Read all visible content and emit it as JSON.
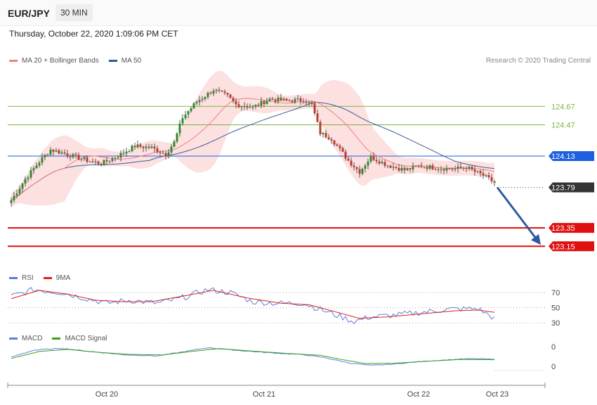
{
  "header": {
    "pair": "EUR/JPY",
    "timeframe": "30 MIN"
  },
  "datetime": "Thursday, October 22, 2020 1:09:06 PM CET",
  "credit": "Research © 2020 Trading Central",
  "legends": {
    "main": [
      {
        "label": "MA 20 + Bollinger Bands",
        "color": "#f08080"
      },
      {
        "label": "MA 50",
        "color": "#2d5a9a"
      }
    ],
    "rsi": [
      {
        "label": "RSI",
        "color": "#5b7fd6"
      },
      {
        "label": "9MA",
        "color": "#e02020"
      }
    ],
    "macd": [
      {
        "label": "MACD",
        "color": "#5b7fd6"
      },
      {
        "label": "MACD Signal",
        "color": "#3aa01d"
      }
    ]
  },
  "colors": {
    "bull": "#2e8b2e",
    "bear": "#c0392b",
    "res": "#7cb342",
    "blue": "#1e5fe0",
    "sup": "#e01010",
    "band": "#fde0e0",
    "ma20": "#f08080",
    "ma50": "#3a5d9a"
  },
  "chart_data": [
    {
      "type": "candlestick",
      "title": "EUR/JPY 30 MIN",
      "x_tick_labels": [
        "Oct 20",
        "Oct 21",
        "Oct 22",
        "Oct 23"
      ],
      "ylim": [
        122.9,
        125.1
      ],
      "levels": [
        {
          "value": 124.67,
          "label": "124.67",
          "kind": "resistance"
        },
        {
          "value": 124.47,
          "label": "124.47",
          "kind": "resistance"
        },
        {
          "value": 124.13,
          "label": "124.13",
          "kind": "pivot"
        },
        {
          "value": 123.79,
          "label": "123.79",
          "kind": "last"
        },
        {
          "value": 123.35,
          "label": "123.35",
          "kind": "support"
        },
        {
          "value": 123.15,
          "label": "123.15",
          "kind": "support"
        }
      ],
      "arrow": {
        "from": 123.79,
        "to": 123.15,
        "direction": "down"
      },
      "path_anchors": [
        [
          0,
          123.65
        ],
        [
          5,
          123.88
        ],
        [
          10,
          124.07
        ],
        [
          14,
          124.2
        ],
        [
          20,
          124.15
        ],
        [
          26,
          124.09
        ],
        [
          32,
          124.05
        ],
        [
          38,
          124.13
        ],
        [
          44,
          124.24
        ],
        [
          50,
          124.22
        ],
        [
          55,
          124.15
        ],
        [
          58,
          124.28
        ],
        [
          61,
          124.55
        ],
        [
          66,
          124.72
        ],
        [
          72,
          124.85
        ],
        [
          77,
          124.78
        ],
        [
          80,
          124.69
        ],
        [
          86,
          124.66
        ],
        [
          92,
          124.75
        ],
        [
          98,
          124.73
        ],
        [
          104,
          124.74
        ],
        [
          107,
          124.69
        ],
        [
          110,
          124.38
        ],
        [
          114,
          124.32
        ],
        [
          120,
          124.08
        ],
        [
          124,
          123.96
        ],
        [
          128,
          124.12
        ],
        [
          134,
          124.03
        ],
        [
          140,
          123.98
        ],
        [
          146,
          124.02
        ],
        [
          152,
          124.0
        ],
        [
          158,
          123.99
        ],
        [
          162,
          124.01
        ],
        [
          165,
          123.96
        ],
        [
          168,
          123.92
        ],
        [
          172,
          123.84
        ]
      ]
    },
    {
      "type": "line",
      "title": "RSI",
      "y_ticks": [
        70,
        50,
        30
      ],
      "series": [
        {
          "name": "RSI"
        },
        {
          "name": "9MA"
        }
      ],
      "rsi_anchors": [
        [
          0,
          65
        ],
        [
          8,
          74
        ],
        [
          18,
          70
        ],
        [
          26,
          63
        ],
        [
          34,
          56
        ],
        [
          42,
          60
        ],
        [
          52,
          56
        ],
        [
          60,
          62
        ],
        [
          70,
          74
        ],
        [
          78,
          70
        ],
        [
          86,
          58
        ],
        [
          94,
          56
        ],
        [
          104,
          56
        ],
        [
          112,
          45
        ],
        [
          122,
          32
        ],
        [
          128,
          38
        ],
        [
          136,
          40
        ],
        [
          146,
          44
        ],
        [
          156,
          48
        ],
        [
          166,
          49
        ],
        [
          172,
          36
        ]
      ],
      "ma_anchors": [
        [
          0,
          62
        ],
        [
          10,
          73
        ],
        [
          20,
          68
        ],
        [
          30,
          60
        ],
        [
          40,
          58
        ],
        [
          50,
          58
        ],
        [
          62,
          66
        ],
        [
          72,
          73
        ],
        [
          84,
          63
        ],
        [
          96,
          56
        ],
        [
          106,
          54
        ],
        [
          116,
          44
        ],
        [
          124,
          36
        ],
        [
          134,
          38
        ],
        [
          146,
          42
        ],
        [
          158,
          46
        ],
        [
          166,
          47
        ],
        [
          172,
          44
        ]
      ]
    },
    {
      "type": "line",
      "title": "MACD",
      "y_ticks": [
        0,
        0
      ],
      "series": [
        {
          "name": "MACD"
        },
        {
          "name": "MACD Signal"
        }
      ],
      "macd_anchors": [
        [
          0,
          0.0
        ],
        [
          8,
          0.55
        ],
        [
          18,
          0.7
        ],
        [
          28,
          0.45
        ],
        [
          40,
          0.2
        ],
        [
          52,
          0.1
        ],
        [
          62,
          0.45
        ],
        [
          70,
          0.75
        ],
        [
          80,
          0.55
        ],
        [
          92,
          0.35
        ],
        [
          104,
          0.2
        ],
        [
          112,
          -0.05
        ],
        [
          120,
          -0.45
        ],
        [
          128,
          -0.65
        ],
        [
          136,
          -0.55
        ],
        [
          148,
          -0.3
        ],
        [
          160,
          -0.15
        ],
        [
          166,
          -0.12
        ],
        [
          172,
          -0.18
        ]
      ],
      "signal_anchors": [
        [
          0,
          -0.1
        ],
        [
          10,
          0.45
        ],
        [
          20,
          0.62
        ],
        [
          30,
          0.4
        ],
        [
          42,
          0.22
        ],
        [
          54,
          0.18
        ],
        [
          64,
          0.45
        ],
        [
          74,
          0.68
        ],
        [
          86,
          0.48
        ],
        [
          98,
          0.3
        ],
        [
          110,
          0.15
        ],
        [
          118,
          -0.2
        ],
        [
          126,
          -0.5
        ],
        [
          136,
          -0.48
        ],
        [
          148,
          -0.32
        ],
        [
          160,
          -0.18
        ],
        [
          172,
          -0.2
        ]
      ]
    }
  ]
}
